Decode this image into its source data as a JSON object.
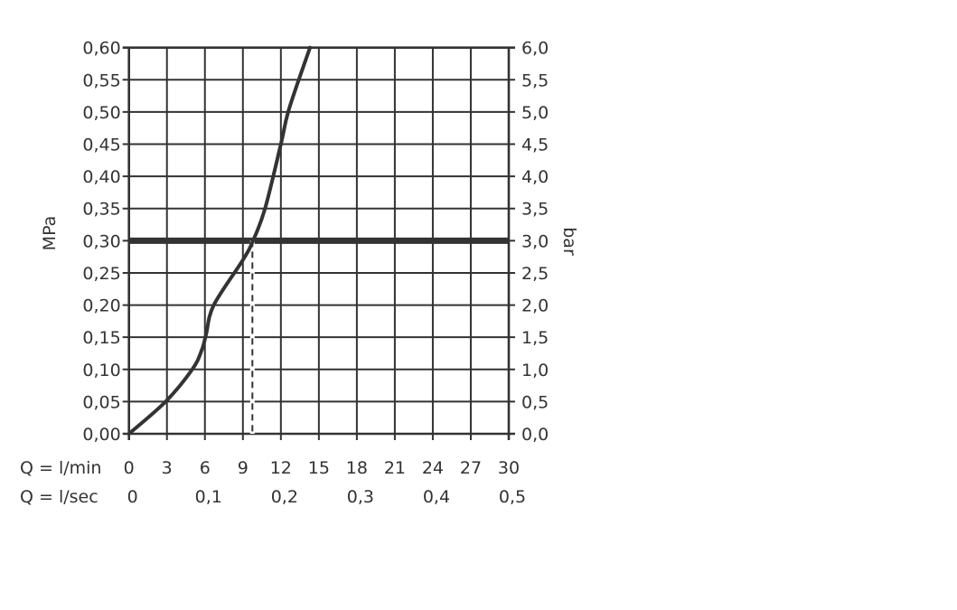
{
  "chart_data": {
    "type": "line",
    "title": "",
    "ylabel_left": "MPa",
    "ylabel_right": "bar",
    "x_row_labels": [
      "Q = l/min",
      "Q = l/sec"
    ],
    "xlim": [
      0,
      30
    ],
    "ylim": [
      0,
      0.6
    ],
    "grid": true,
    "x_ticks": [
      "0",
      "3",
      "6",
      "9",
      "12",
      "15",
      "18",
      "21",
      "24",
      "27",
      "30"
    ],
    "x_tick_values": [
      0,
      3,
      6,
      9,
      12,
      15,
      18,
      21,
      24,
      27,
      30
    ],
    "x2_ticks": [
      "0",
      "0,1",
      "0,2",
      "0,3",
      "0,4",
      "0,5"
    ],
    "x2_tick_values": [
      0,
      0.1,
      0.2,
      0.3,
      0.4,
      0.5
    ],
    "y_ticks_left": [
      "0,00",
      "0,05",
      "0,10",
      "0,15",
      "0,20",
      "0,25",
      "0,30",
      "0,35",
      "0,40",
      "0,45",
      "0,50",
      "0,55",
      "0,60"
    ],
    "y_ticks_right": [
      "0,0",
      "0,5",
      "1,0",
      "1,5",
      "2,0",
      "2,5",
      "3,0",
      "3,5",
      "4,0",
      "4,5",
      "5,0",
      "5,5",
      "6,0"
    ],
    "y_tick_values": [
      0,
      0.05,
      0.1,
      0.15,
      0.2,
      0.25,
      0.3,
      0.35,
      0.4,
      0.45,
      0.5,
      0.55,
      0.6
    ],
    "series": [
      {
        "x": [
          0,
          2.9,
          5.0,
          5.75,
          6.1,
          6.7,
          9.0,
          9.8,
          10.75,
          12.0,
          12.65,
          14.3
        ],
        "y": [
          0,
          0.05,
          0.1,
          0.13,
          0.155,
          0.2,
          0.27,
          0.3,
          0.35,
          0.45,
          0.505,
          0.6
        ]
      }
    ],
    "reference_line_y": 0.3,
    "reference_dashed_x": 9.75,
    "colors": {
      "line": "#333333",
      "grid": "#333333"
    }
  }
}
